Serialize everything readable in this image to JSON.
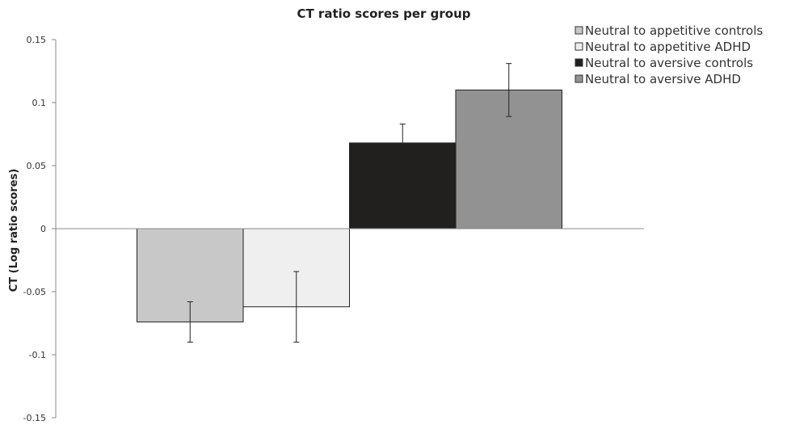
{
  "chart_data": {
    "type": "bar",
    "title": "CT ratio scores per group",
    "xlabel": "",
    "ylabel": "CT (Log ratio scores)",
    "ylim": [
      -0.15,
      0.15
    ],
    "yticks": [
      "0.15",
      "0.1",
      "0.05",
      "0",
      "-0.05",
      "-0.1",
      "-0.15"
    ],
    "ytick_values": [
      0.15,
      0.1,
      0.05,
      0,
      -0.05,
      -0.1,
      -0.15
    ],
    "grid": false,
    "legend_position": "top-right",
    "series": [
      {
        "name": "Neutral to appetitive controls",
        "value": -0.074,
        "error": 0.016,
        "color": "#c8c8c8"
      },
      {
        "name": "Neutral to appetitive ADHD",
        "value": -0.062,
        "error": 0.028,
        "color": "#efefef"
      },
      {
        "name": "Neutral to aversive controls",
        "value": 0.068,
        "error": 0.015,
        "color": "#221f1f"
      },
      {
        "name": "Neutral to aversive ADHD",
        "value": 0.11,
        "error": 0.021,
        "color": "#929292"
      }
    ]
  }
}
